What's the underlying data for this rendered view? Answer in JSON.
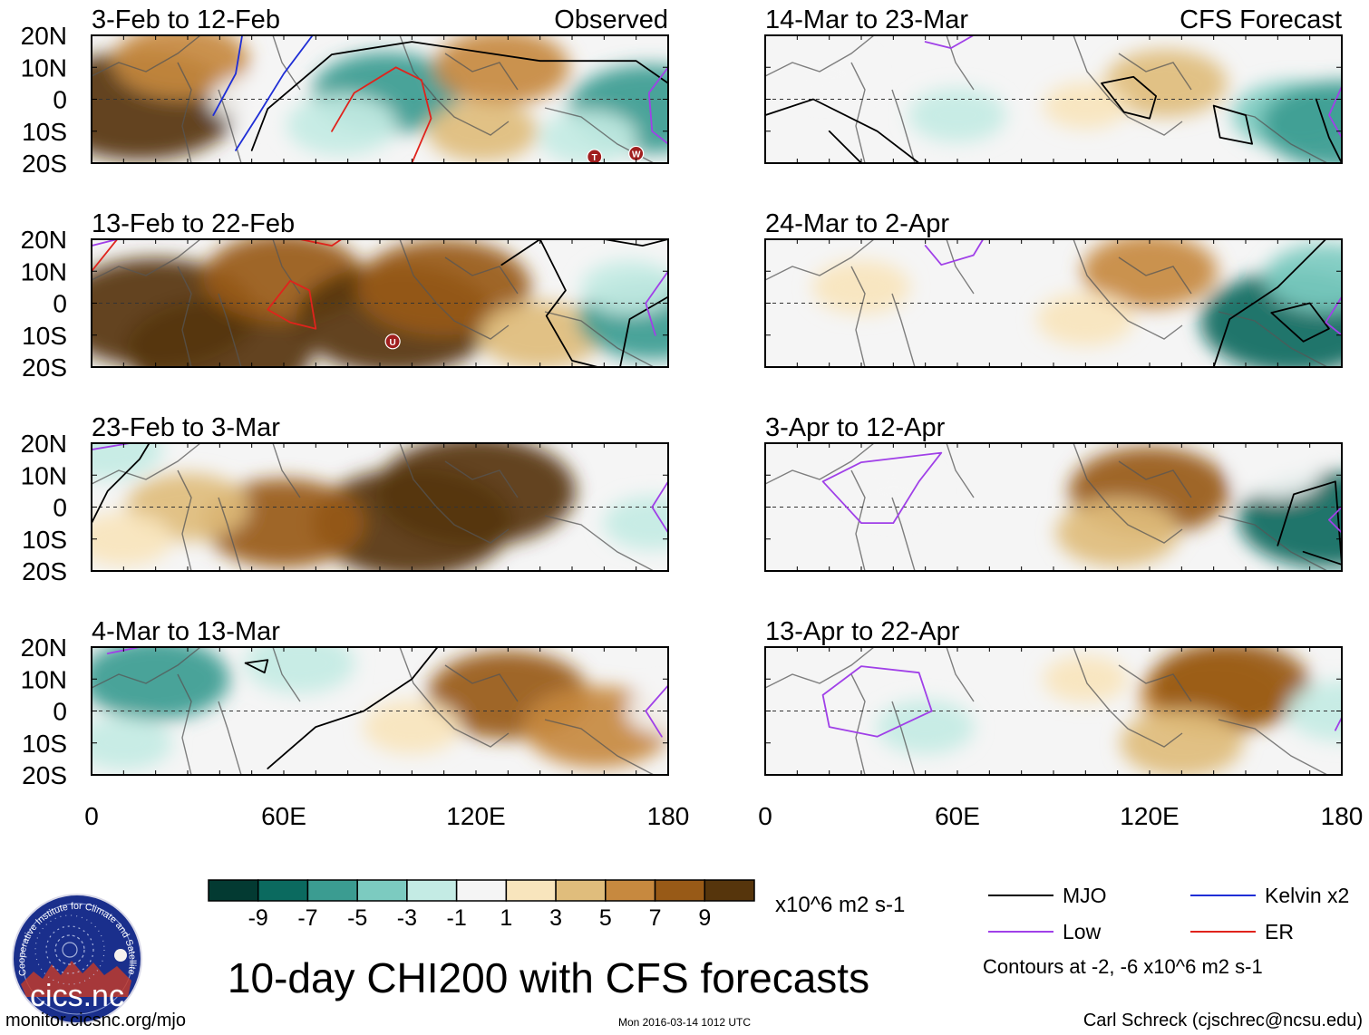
{
  "figure": {
    "title": "10-day CHI200 with CFS forecasts",
    "units": "x10^6 m2 s-1",
    "url": "monitor.cicsnc.org/mjo",
    "timestamp": "Mon 2016-03-14 1012 UTC",
    "author": "Carl Schreck (cjschrec@ncsu.edu)",
    "contour_note": "Contours at -2, -6 x10^6 m2 s-1",
    "logo_text": "cics.nc",
    "logo_ring_text": "Cooperative Institute for Climate and Satellites"
  },
  "axes": {
    "y_ticks": [
      "20N",
      "10N",
      "0",
      "10S",
      "20S"
    ],
    "x_ticks": [
      "0",
      "60E",
      "120E",
      "180"
    ],
    "lon_range": [
      0,
      180
    ],
    "lat_range": [
      -20,
      20
    ]
  },
  "columns": [
    {
      "label": "Observed"
    },
    {
      "label": "CFS Forecast"
    }
  ],
  "panels": [
    {
      "title": "3-Feb to 12-Feb",
      "field": [
        {
          "lon": 15,
          "lat": -2,
          "value": 10
        },
        {
          "lon": 28,
          "lat": 12,
          "value": 5
        },
        {
          "lon": 50,
          "lat": 0,
          "value": -1
        },
        {
          "lon": 92,
          "lat": 2,
          "value": -6
        },
        {
          "lon": 78,
          "lat": -8,
          "value": -3
        },
        {
          "lon": 128,
          "lat": 10,
          "value": 5
        },
        {
          "lon": 122,
          "lat": -10,
          "value": 3
        },
        {
          "lon": 174,
          "lat": -3,
          "value": -7
        },
        {
          "lon": 155,
          "lat": -12,
          "value": -2
        }
      ],
      "markers": [
        {
          "lon": 157,
          "lat": -18,
          "label": "T"
        },
        {
          "lon": 170,
          "lat": -17,
          "label": "W"
        }
      ],
      "contours": [
        {
          "type": "MJO",
          "points": [
            [
              50,
              -16
            ],
            [
              55,
              -3
            ],
            [
              75,
              14
            ],
            [
              100,
              18
            ],
            [
              140,
              12
            ],
            [
              170,
              12
            ],
            [
              180,
              5
            ]
          ]
        },
        {
          "type": "Kelvin",
          "points": [
            [
              38,
              -5
            ],
            [
              45,
              8
            ],
            [
              47,
              20
            ]
          ]
        },
        {
          "type": "Kelvin",
          "points": [
            [
              45,
              -16
            ],
            [
              52,
              -5
            ],
            [
              60,
              8
            ],
            [
              69,
              20
            ]
          ]
        },
        {
          "type": "ER",
          "points": [
            [
              75,
              -10
            ],
            [
              82,
              2
            ],
            [
              95,
              10
            ],
            [
              103,
              6
            ],
            [
              106,
              -6
            ],
            [
              100,
              -20
            ]
          ]
        },
        {
          "type": "Low",
          "points": [
            [
              180,
              10
            ],
            [
              174,
              2
            ],
            [
              175,
              -10
            ],
            [
              180,
              -14
            ]
          ]
        }
      ]
    },
    {
      "title": "14-Mar to 23-Mar",
      "field": [
        {
          "lon": 125,
          "lat": 5,
          "value": 4
        },
        {
          "lon": 100,
          "lat": -2,
          "value": 1
        },
        {
          "lon": 165,
          "lat": -5,
          "value": -4
        },
        {
          "lon": 180,
          "lat": -8,
          "value": -7
        },
        {
          "lon": 60,
          "lat": -5,
          "value": -2
        },
        {
          "lon": 20,
          "lat": 8,
          "value": -1
        }
      ],
      "markers": [],
      "contours": [
        {
          "type": "MJO",
          "points": [
            [
              0,
              -5
            ],
            [
              15,
              0
            ],
            [
              35,
              -10
            ],
            [
              48,
              -20
            ]
          ]
        },
        {
          "type": "MJO",
          "points": [
            [
              20,
              -10
            ],
            [
              30,
              -20
            ]
          ]
        },
        {
          "type": "MJO",
          "points": [
            [
              105,
              5
            ],
            [
              115,
              7
            ],
            [
              122,
              1
            ],
            [
              120,
              -6
            ],
            [
              112,
              -4
            ],
            [
              105,
              5
            ]
          ]
        },
        {
          "type": "MJO",
          "points": [
            [
              140,
              -2
            ],
            [
              150,
              -5
            ],
            [
              152,
              -14
            ],
            [
              142,
              -12
            ],
            [
              140,
              -2
            ]
          ]
        },
        {
          "type": "MJO",
          "points": [
            [
              172,
              0
            ],
            [
              176,
              -12
            ],
            [
              180,
              -20
            ]
          ]
        },
        {
          "type": "Low",
          "points": [
            [
              180,
              4
            ],
            [
              176,
              -5
            ],
            [
              180,
              -12
            ]
          ]
        },
        {
          "type": "Low",
          "points": [
            [
              50,
              18
            ],
            [
              58,
              16
            ],
            [
              65,
              20
            ]
          ]
        }
      ]
    },
    {
      "title": "13-Feb to 22-Feb",
      "field": [
        {
          "lon": 20,
          "lat": -3,
          "value": 10
        },
        {
          "lon": 40,
          "lat": -15,
          "value": 9
        },
        {
          "lon": 60,
          "lat": 8,
          "value": 7
        },
        {
          "lon": 95,
          "lat": -5,
          "value": 10
        },
        {
          "lon": 110,
          "lat": 5,
          "value": 8
        },
        {
          "lon": 140,
          "lat": -10,
          "value": 4
        },
        {
          "lon": 175,
          "lat": -5,
          "value": -6
        },
        {
          "lon": 168,
          "lat": 5,
          "value": -2
        }
      ],
      "markers": [
        {
          "lon": 94,
          "lat": -12,
          "label": "U"
        }
      ],
      "contours": [
        {
          "type": "MJO",
          "points": [
            [
              128,
              12
            ],
            [
              140,
              20
            ],
            [
              148,
              4
            ],
            [
              142,
              -4
            ],
            [
              150,
              -18
            ],
            [
              158,
              -20
            ]
          ]
        },
        {
          "type": "MJO",
          "points": [
            [
              165,
              -20
            ],
            [
              168,
              -5
            ],
            [
              180,
              2
            ]
          ]
        },
        {
          "type": "MJO",
          "points": [
            [
              160,
              20
            ],
            [
              172,
              18
            ],
            [
              180,
              20
            ]
          ]
        },
        {
          "type": "ER",
          "points": [
            [
              55,
              -2
            ],
            [
              62,
              7
            ],
            [
              68,
              4
            ],
            [
              70,
              -8
            ],
            [
              62,
              -6
            ],
            [
              55,
              -2
            ]
          ]
        },
        {
          "type": "ER",
          "points": [
            [
              0,
              10
            ],
            [
              8,
              20
            ]
          ]
        },
        {
          "type": "ER",
          "points": [
            [
              65,
              20
            ],
            [
              75,
              18
            ],
            [
              78,
              20
            ]
          ]
        },
        {
          "type": "Low",
          "points": [
            [
              180,
              10
            ],
            [
              173,
              0
            ],
            [
              176,
              -10
            ]
          ]
        },
        {
          "type": "Low",
          "points": [
            [
              0,
              18
            ],
            [
              8,
              20
            ]
          ]
        }
      ]
    },
    {
      "title": "24-Mar to 2-Apr",
      "field": [
        {
          "lon": 120,
          "lat": 10,
          "value": 5
        },
        {
          "lon": 30,
          "lat": 5,
          "value": 2
        },
        {
          "lon": 100,
          "lat": -5,
          "value": 2
        },
        {
          "lon": 165,
          "lat": -6,
          "value": -9
        },
        {
          "lon": 175,
          "lat": 8,
          "value": -4
        }
      ],
      "markers": [],
      "contours": [
        {
          "type": "MJO",
          "points": [
            [
              140,
              -20
            ],
            [
              145,
              -5
            ],
            [
              160,
              5
            ],
            [
              170,
              15
            ],
            [
              175,
              20
            ]
          ]
        },
        {
          "type": "MJO",
          "points": [
            [
              158,
              -3
            ],
            [
              170,
              0
            ],
            [
              176,
              -8
            ],
            [
              168,
              -12
            ],
            [
              158,
              -3
            ]
          ]
        },
        {
          "type": "Low",
          "points": [
            [
              50,
              18
            ],
            [
              55,
              12
            ],
            [
              65,
              15
            ],
            [
              68,
              20
            ]
          ]
        },
        {
          "type": "Low",
          "points": [
            [
              180,
              2
            ],
            [
              175,
              -6
            ],
            [
              180,
              -10
            ]
          ]
        }
      ]
    },
    {
      "title": "23-Feb to 3-Mar",
      "field": [
        {
          "lon": 100,
          "lat": -5,
          "value": 10
        },
        {
          "lon": 120,
          "lat": 5,
          "value": 10
        },
        {
          "lon": 60,
          "lat": -5,
          "value": 7
        },
        {
          "lon": 30,
          "lat": 0,
          "value": 4
        },
        {
          "lon": 10,
          "lat": -10,
          "value": 2
        },
        {
          "lon": 175,
          "lat": -5,
          "value": -2
        },
        {
          "lon": 5,
          "lat": 18,
          "value": -3
        }
      ],
      "markers": [],
      "contours": [
        {
          "type": "MJO",
          "points": [
            [
              0,
              -5
            ],
            [
              5,
              5
            ],
            [
              15,
              15
            ],
            [
              18,
              20
            ]
          ]
        },
        {
          "type": "Low",
          "points": [
            [
              180,
              8
            ],
            [
              175,
              0
            ],
            [
              180,
              -8
            ]
          ]
        },
        {
          "type": "Low",
          "points": [
            [
              0,
              18
            ],
            [
              12,
              20
            ]
          ]
        }
      ]
    },
    {
      "title": "3-Apr to 12-Apr",
      "field": [
        {
          "lon": 120,
          "lat": 5,
          "value": 7
        },
        {
          "lon": 110,
          "lat": -8,
          "value": 4
        },
        {
          "lon": 40,
          "lat": 5,
          "value": -1
        },
        {
          "lon": 175,
          "lat": -4,
          "value": -8
        },
        {
          "lon": 160,
          "lat": 10,
          "value": -1
        }
      ],
      "markers": [],
      "contours": [
        {
          "type": "MJO",
          "points": [
            [
              160,
              -12
            ],
            [
              165,
              4
            ],
            [
              178,
              8
            ],
            [
              180,
              -18
            ],
            [
              168,
              -14
            ]
          ]
        },
        {
          "type": "Low",
          "points": [
            [
              18,
              8
            ],
            [
              30,
              14
            ],
            [
              55,
              17
            ],
            [
              48,
              8
            ],
            [
              40,
              -5
            ],
            [
              30,
              -5
            ],
            [
              18,
              8
            ]
          ]
        },
        {
          "type": "Low",
          "points": [
            [
              180,
              0
            ],
            [
              176,
              -4
            ],
            [
              180,
              -8
            ]
          ]
        }
      ]
    },
    {
      "title": "4-Mar to 13-Mar",
      "field": [
        {
          "lon": 20,
          "lat": 10,
          "value": -6
        },
        {
          "lon": 65,
          "lat": 15,
          "value": -3
        },
        {
          "lon": 10,
          "lat": -10,
          "value": -2
        },
        {
          "lon": 130,
          "lat": 5,
          "value": 7
        },
        {
          "lon": 158,
          "lat": -5,
          "value": 6
        },
        {
          "lon": 100,
          "lat": -5,
          "value": 2
        },
        {
          "lon": 180,
          "lat": 0,
          "value": -1
        }
      ],
      "markers": [],
      "contours": [
        {
          "type": "MJO",
          "points": [
            [
              55,
              -18
            ],
            [
              70,
              -5
            ],
            [
              85,
              0
            ],
            [
              100,
              10
            ],
            [
              108,
              20
            ]
          ]
        },
        {
          "type": "MJO",
          "points": [
            [
              48,
              15
            ],
            [
              55,
              16
            ],
            [
              54,
              12
            ],
            [
              48,
              15
            ]
          ]
        },
        {
          "type": "Low",
          "points": [
            [
              180,
              8
            ],
            [
              173,
              0
            ],
            [
              178,
              -8
            ]
          ]
        },
        {
          "type": "Low",
          "points": [
            [
              5,
              18
            ],
            [
              15,
              20
            ]
          ]
        }
      ]
    },
    {
      "title": "13-Apr to 22-Apr",
      "field": [
        {
          "lon": 140,
          "lat": 5,
          "value": 6
        },
        {
          "lon": 145,
          "lat": 8,
          "value": 7
        },
        {
          "lon": 130,
          "lat": -10,
          "value": 4
        },
        {
          "lon": 50,
          "lat": -5,
          "value": -2
        },
        {
          "lon": 180,
          "lat": 0,
          "value": -3
        },
        {
          "lon": 100,
          "lat": 10,
          "value": 1
        }
      ],
      "markers": [],
      "contours": [
        {
          "type": "Low",
          "points": [
            [
              18,
              5
            ],
            [
              30,
              14
            ],
            [
              48,
              12
            ],
            [
              52,
              0
            ],
            [
              35,
              -8
            ],
            [
              20,
              -5
            ],
            [
              18,
              5
            ]
          ]
        },
        {
          "type": "Low",
          "points": [
            [
              180,
              -2
            ],
            [
              178,
              -6
            ]
          ]
        }
      ]
    }
  ],
  "colorbar": {
    "labels": [
      "-9",
      "-7",
      "-5",
      "-3",
      "-1",
      "1",
      "3",
      "5",
      "7",
      "9"
    ],
    "colors": [
      "#033a32",
      "#0b6a5f",
      "#3b9c91",
      "#7ccbc0",
      "#c4ebe4",
      "#f5f5f5",
      "#f8e5bd",
      "#e0bd7c",
      "#c7893f",
      "#985a17",
      "#56350c"
    ]
  },
  "legend": {
    "items": [
      {
        "label": "MJO",
        "color": "#000000"
      },
      {
        "label": "Kelvin x2",
        "color": "#1f2ed6"
      },
      {
        "label": "Low",
        "color": "#a040e8"
      },
      {
        "label": "ER",
        "color": "#e0231c"
      }
    ]
  }
}
